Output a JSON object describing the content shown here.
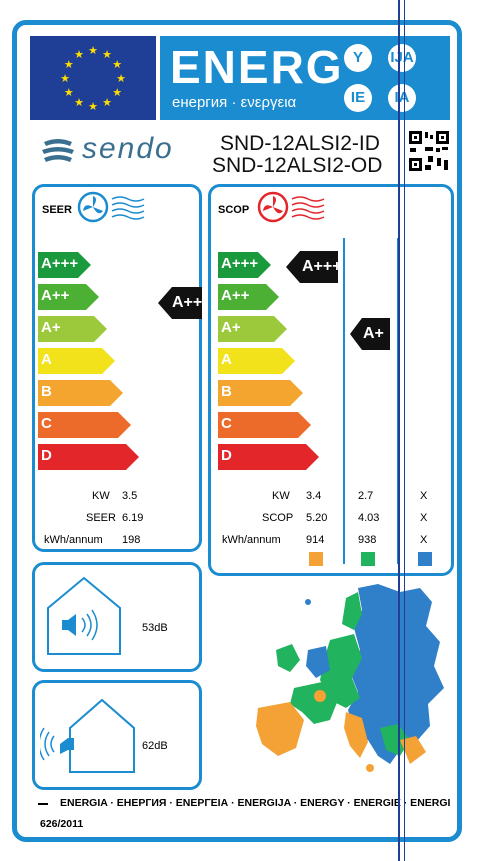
{
  "header": {
    "title": "ENERG",
    "subtitle": "енергия · ενεργεια",
    "lang_codes": [
      "Y",
      "IJA",
      "IE",
      "IA"
    ]
  },
  "brand": {
    "name": "sendo"
  },
  "model": {
    "indoor": "SND-12ALSI2-ID",
    "outdoor": "SND-12ALSI2-OD"
  },
  "cooling": {
    "label": "SEER",
    "classes": [
      "A+++",
      "A++",
      "A+",
      "A",
      "B",
      "C",
      "D"
    ],
    "rating": "A++",
    "rows": [
      {
        "label": "KW",
        "value": "3.5"
      },
      {
        "label": "SEER",
        "value": "6.19"
      },
      {
        "label": "kWh/annum",
        "value": "198"
      }
    ]
  },
  "heating": {
    "label": "SCOP",
    "classes": [
      "A+++",
      "A++",
      "A+",
      "A",
      "B",
      "C",
      "D"
    ],
    "rating_warm": "A+++",
    "rating_avg": "A+",
    "rows": [
      {
        "label": "KW",
        "warm": "3.4",
        "avg": "2.7",
        "cold": "X"
      },
      {
        "label": "SCOP",
        "warm": "5.20",
        "avg": "4.03",
        "cold": "X"
      },
      {
        "label": "kWh/annum",
        "warm": "914",
        "avg": "938",
        "cold": "X"
      }
    ]
  },
  "noise": {
    "indoor": "53dB",
    "outdoor": "62dB"
  },
  "footer": {
    "languages": "ENERGIA · ЕНЕРГИЯ · ΕΝΕΡΓΕΙΑ · ENERGIJA · ENERGY · ENERGIE · ENERGI",
    "regulation": "626/2011"
  },
  "colors": {
    "frame_blue": "#1a8ccf",
    "eu_blue": "#1f3e96",
    "zone_warm": "#f4a236",
    "zone_avg": "#22b35e",
    "zone_cold": "#2f7fc9",
    "scale": [
      "#1a9a3c",
      "#4cb034",
      "#9cc93c",
      "#f2e21b",
      "#f3a52f",
      "#ec6a2a",
      "#e2262a"
    ]
  }
}
